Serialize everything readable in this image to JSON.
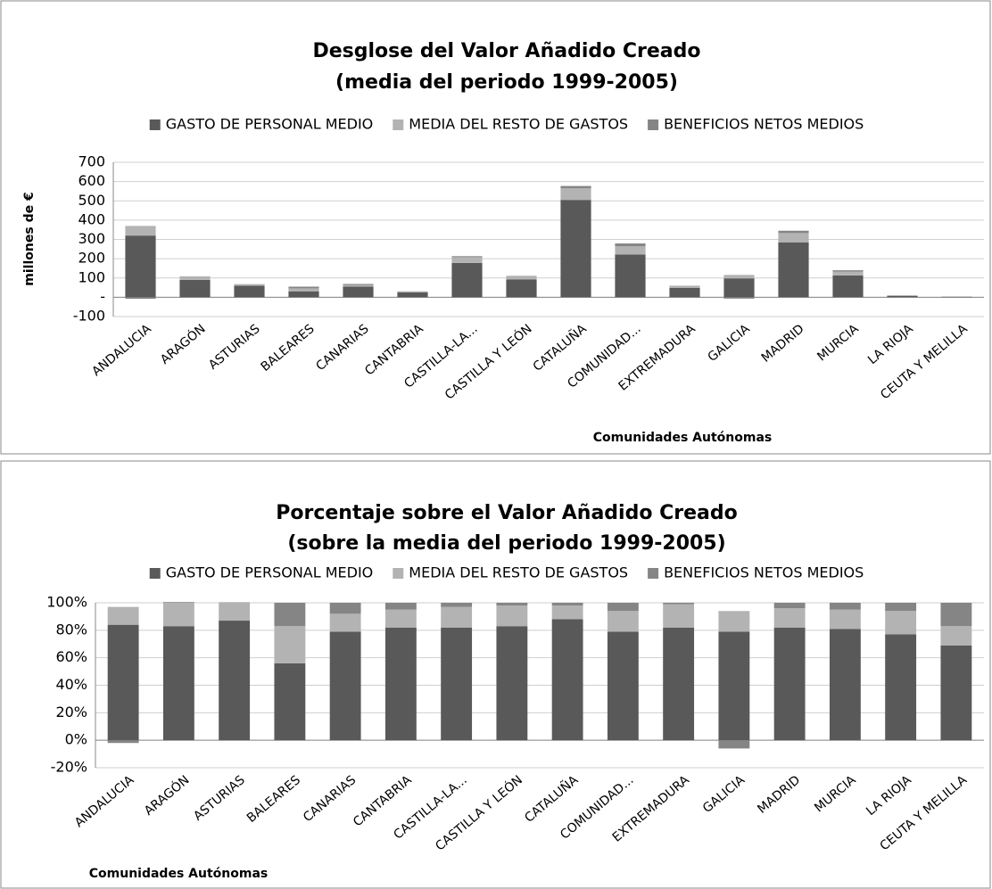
{
  "chart_data": [
    {
      "type": "bar",
      "stacked": true,
      "title": "Desglose del Valor Añadido Creado",
      "subtitle": "(media del periodo 1999-2005)",
      "x_label": "Comunidades Autónomas",
      "y_label": "millones de €",
      "categories": [
        "ANDALUCIA",
        "ARAGÓN",
        "ASTURIAS",
        "BALEARES",
        "CANARIAS",
        "CANTABRIA",
        "CASTILLA-LA...",
        "CASTILLA Y LEÓN",
        "CATALUÑA",
        "COMUNIDAD...",
        "EXTREMADURA",
        "GALICIA",
        "MADRID",
        "MURCIA",
        "LA RIOJA",
        "CEUTA Y MELILLA"
      ],
      "series": [
        {
          "name": "GASTO DE PERSONAL MEDIO",
          "color": "#595959",
          "values": [
            320,
            90,
            60,
            31,
            55,
            25,
            178,
            92,
            505,
            222,
            49,
            98,
            285,
            113,
            7.7,
            2.7
          ]
        },
        {
          "name": "MEDIA DEL RESTO DE GASTOS",
          "color": "#b3b3b3",
          "values": [
            50,
            18,
            8,
            15,
            9,
            4,
            30,
            17,
            60,
            42,
            10,
            18,
            48,
            20,
            1.7,
            0.55
          ]
        },
        {
          "name": "BENEFICIOS NETOS MEDIOS",
          "color": "#858585",
          "values": [
            -8,
            0.5,
            0.3,
            9,
            5,
            1.5,
            5,
            2,
            12,
            15,
            1,
            -7,
            12,
            7,
            0.6,
            0.7
          ]
        }
      ],
      "ylim": [
        -100,
        700
      ],
      "yticks": [
        -100,
        {
          "value": 0,
          "label": "-"
        },
        100,
        200,
        300,
        400,
        500,
        600,
        700
      ],
      "grid": true,
      "legend": "top"
    },
    {
      "type": "bar",
      "stacked": true,
      "title": "Porcentaje sobre el Valor Añadido Creado",
      "subtitle": "(sobre la media del periodo 1999-2005)",
      "x_label": "Comunidades Autónomas",
      "categories": [
        "ANDALUCIA",
        "ARAGÓN",
        "ASTURIAS",
        "BALEARES",
        "CANARIAS",
        "CANTABRIA",
        "CASTILLA-LA...",
        "CASTILLA Y LEÓN",
        "CATALUÑA",
        "COMUNIDAD...",
        "EXTREMADURA",
        "GALICIA",
        "MADRID",
        "MURCIA",
        "LA RIOJA",
        "CEUTA Y MELILLA"
      ],
      "series": [
        {
          "name": "GASTO DE PERSONAL MEDIO",
          "color": "#595959",
          "values": [
            84,
            83,
            87,
            56,
            79,
            82,
            82,
            83,
            88,
            79,
            82,
            79,
            82,
            81,
            77,
            69
          ]
        },
        {
          "name": "MEDIA DEL RESTO DE GASTOS",
          "color": "#b3b3b3",
          "values": [
            13,
            17,
            13,
            27,
            13,
            13,
            15,
            15,
            10,
            15,
            17,
            15,
            14,
            14,
            17,
            14
          ]
        },
        {
          "name": "BENEFICIOS NETOS MEDIOS",
          "color": "#858585",
          "values": [
            -2,
            0.5,
            0.3,
            17,
            8,
            5,
            3,
            2,
            2,
            6,
            1,
            -6,
            4,
            5,
            6,
            17
          ]
        }
      ],
      "ylim": [
        -20,
        100
      ],
      "yticks": [
        {
          "value": -20,
          "label": "-20%"
        },
        {
          "value": 0,
          "label": "0%"
        },
        {
          "value": 20,
          "label": "20%"
        },
        {
          "value": 40,
          "label": "40%"
        },
        {
          "value": 60,
          "label": "60%"
        },
        {
          "value": 80,
          "label": "80%"
        },
        {
          "value": 100,
          "label": "100%"
        }
      ],
      "grid": true,
      "legend": "top"
    }
  ]
}
